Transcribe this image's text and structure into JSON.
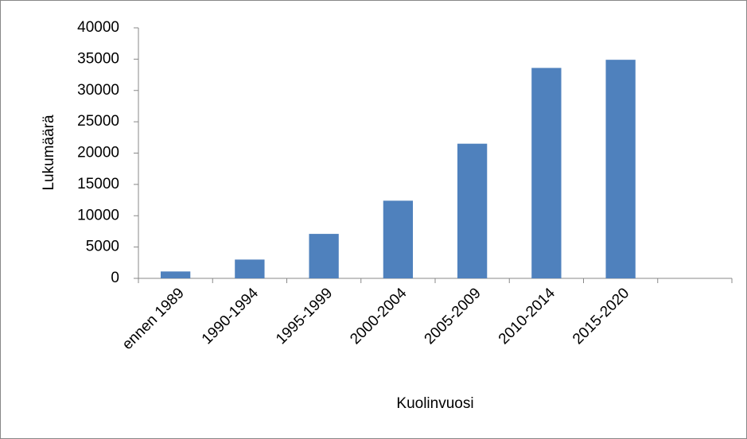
{
  "chart_data": {
    "type": "bar",
    "x_label": "Kuolinvuosi",
    "y_label": "Lukumäärä",
    "categories": [
      "ennen 1989",
      "1990-1994",
      "1995-1999",
      "2000-2004",
      "2005-2009",
      "2010-2014",
      "2015-2020",
      null
    ],
    "values": [
      1100,
      3000,
      7100,
      12400,
      21500,
      33600,
      34900,
      null
    ],
    "color": "#4f81bd",
    "ylim": [
      0,
      40000
    ],
    "yticks": [
      0,
      5000,
      10000,
      15000,
      20000,
      25000,
      30000,
      35000,
      40000
    ],
    "grid": false
  }
}
